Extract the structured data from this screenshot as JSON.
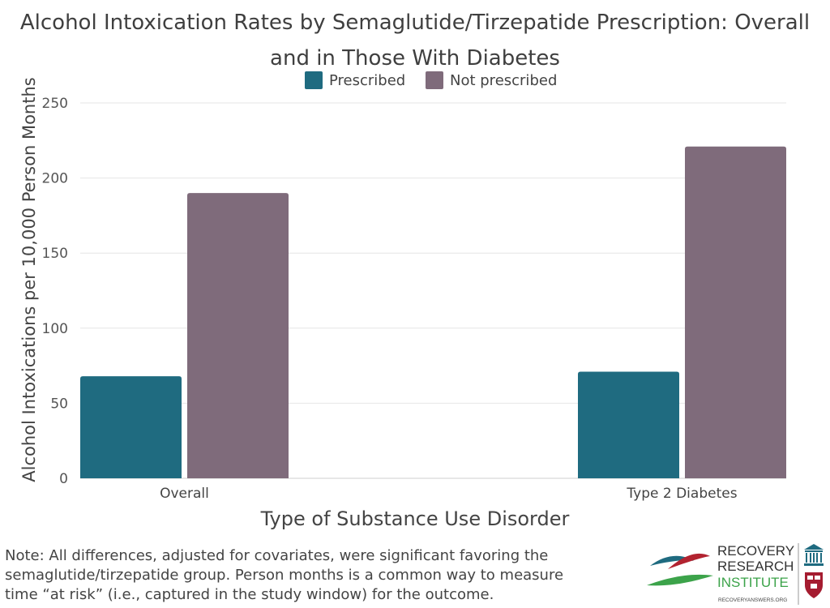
{
  "chart_data": {
    "type": "bar",
    "title_lines": [
      "Alcohol Intoxication Rates by Semaglutide/Tirzepatide Prescription: Overall",
      "and in Those With Diabetes"
    ],
    "xlabel": "Type of Substance Use Disorder",
    "ylabel": "Alcohol Intoxications per 10,000 Person Months",
    "categories": [
      "Overall",
      "Type 2 Diabetes"
    ],
    "series": [
      {
        "name": "Prescribed",
        "color": "#1f6b80",
        "values": [
          68,
          71
        ]
      },
      {
        "name": "Not prescribed",
        "color": "#7f6b7b",
        "values": [
          190,
          221
        ]
      }
    ],
    "ylim": [
      0,
      250
    ],
    "yticks": [
      0,
      50,
      100,
      150,
      200,
      250
    ],
    "grid": true,
    "legend_position": "top-center"
  },
  "note": "Note: All differences, adjusted for covariates, were significant favoring the semaglutide/tirzepatide group. Person months is a common way to measure time “at risk” (i.e., captured in the study window) for the outcome.",
  "logo": {
    "line1": "RECOVERY",
    "line2": "RESEARCH",
    "line3": "INSTITUTE",
    "url": "RECOVERYANSWERS.ORG",
    "colors": {
      "teal": "#1f6b80",
      "red": "#b22330",
      "green": "#3ca34a",
      "dark": "#333333"
    }
  }
}
